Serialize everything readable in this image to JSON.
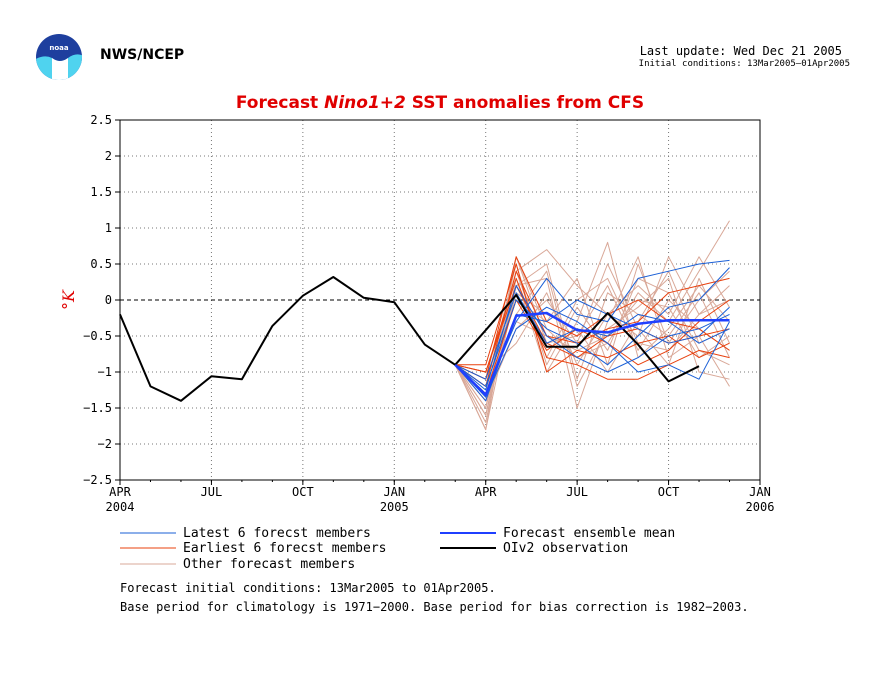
{
  "header": {
    "org": "NWS/NCEP",
    "last_update": "Last update: Wed Dec 21 2005",
    "initial_conditions": "Initial conditions: 13Mar2005–01Apr2005"
  },
  "footer": {
    "line1": "Forecast initial conditions: 13Mar2005 to 01Apr2005.",
    "line2": "Base period for climatology is 1971−2000. Base period for bias correction is 1982−2003."
  },
  "chart_data": {
    "type": "line",
    "title_parts": [
      "Forecast ",
      "Nino1+2",
      " SST anomalies from CFS"
    ],
    "title_color": "#e00000",
    "ylabel": "°K",
    "ylim": [
      -2.5,
      2.5
    ],
    "yticks": [
      "2.5",
      "2",
      "1.5",
      "1",
      "0.5",
      "0",
      "−0.5",
      "−1",
      "−1.5",
      "−2",
      "−2.5"
    ],
    "xlim": [
      0,
      21
    ],
    "xticks": [
      {
        "m": 0,
        "l1": "APR",
        "l2": "2004"
      },
      {
        "m": 3,
        "l1": "JUL",
        "l2": ""
      },
      {
        "m": 6,
        "l1": "OCT",
        "l2": ""
      },
      {
        "m": 9,
        "l1": "JAN",
        "l2": "2005"
      },
      {
        "m": 12,
        "l1": "APR",
        "l2": ""
      },
      {
        "m": 15,
        "l1": "JUL",
        "l2": ""
      },
      {
        "m": 18,
        "l1": "OCT",
        "l2": ""
      },
      {
        "m": 21,
        "l1": "JAN",
        "l2": "2006"
      }
    ],
    "grid": true,
    "legend": [
      {
        "label": "Latest 6 forecst members",
        "color": "#1a5fd6",
        "width": 1
      },
      {
        "label": "Forecast ensemble mean",
        "color": "#1f3fff",
        "width": 2
      },
      {
        "label": "Earliest 6 forecst members",
        "color": "#e8400e",
        "width": 1
      },
      {
        "label": "OIv2 observation",
        "color": "#000000",
        "width": 2
      },
      {
        "label": "Other forecast members",
        "color": "#d9a898",
        "width": 1
      }
    ],
    "observation": {
      "color": "#000000",
      "x": [
        0,
        1,
        2,
        3,
        4,
        5,
        6,
        7,
        8,
        9,
        10,
        11,
        12,
        13,
        14,
        15,
        16,
        17,
        18,
        19
      ],
      "y": [
        -0.2,
        -1.2,
        -1.4,
        -1.06,
        -1.1,
        -0.36,
        0.06,
        0.32,
        0.03,
        -0.03,
        -0.62,
        -0.9,
        -0.42,
        0.07,
        -0.65,
        -0.65,
        -0.18,
        -0.62,
        -1.13,
        -0.92
      ]
    },
    "ensemble_mean": {
      "color": "#1f3fff",
      "x": [
        11,
        12,
        13,
        14,
        15,
        16,
        17,
        18,
        19,
        20
      ],
      "y": [
        -0.9,
        -1.32,
        -0.22,
        -0.18,
        -0.42,
        -0.45,
        -0.33,
        -0.28,
        -0.28,
        -0.28
      ]
    },
    "members_x": [
      11,
      12,
      13,
      14,
      15,
      16,
      17,
      18,
      19,
      20
    ],
    "other_members": {
      "color": "#d9a898",
      "values": [
        [
          -0.9,
          -1.8,
          0.6,
          -0.4,
          -0.8,
          -0.6,
          0.1,
          -0.3,
          0.4,
          1.1
        ],
        [
          -0.9,
          -1.6,
          0.4,
          0.7,
          0.2,
          -0.2,
          -0.5,
          0.6,
          -0.2,
          0.2
        ],
        [
          -0.9,
          -1.5,
          0.2,
          0.3,
          -1.5,
          -0.3,
          0.6,
          -0.8,
          -0.5,
          -1.2
        ],
        [
          -0.9,
          -1.4,
          -0.4,
          0.0,
          -0.6,
          0.5,
          -0.4,
          -0.9,
          0.3,
          -0.6
        ],
        [
          -0.9,
          -1.2,
          0.5,
          -0.9,
          -0.1,
          -0.7,
          0.3,
          0.1,
          -0.7,
          -0.9
        ],
        [
          -0.9,
          -1.7,
          0.3,
          -1.0,
          -0.3,
          0.8,
          -0.8,
          -0.4,
          0.2,
          -0.3
        ],
        [
          -0.9,
          -1.3,
          -0.2,
          0.4,
          -1.2,
          -0.4,
          -0.1,
          0.3,
          -1.0,
          -1.1
        ],
        [
          -0.9,
          -1.1,
          0.0,
          -0.3,
          0.3,
          -0.9,
          0.5,
          -0.6,
          0.0,
          0.4
        ],
        [
          -0.9,
          -1.5,
          0.6,
          -0.6,
          -0.5,
          0.2,
          -0.7,
          0.0,
          -0.4,
          -0.7
        ],
        [
          -0.9,
          -1.0,
          -0.6,
          0.1,
          -0.9,
          -0.2,
          0.2,
          -0.2,
          0.6,
          -0.1
        ],
        [
          -0.9,
          -1.6,
          0.1,
          -0.2,
          -0.4,
          -1.0,
          -0.3,
          0.4,
          -0.6,
          -0.4
        ],
        [
          -0.9,
          -1.4,
          0.4,
          -0.8,
          0.0,
          0.3,
          -0.6,
          -0.7,
          -0.2,
          0.0
        ],
        [
          -0.9,
          -1.2,
          -0.3,
          -0.5,
          -0.7,
          -0.5,
          0.0,
          -0.1,
          -0.8,
          -0.5
        ],
        [
          -0.9,
          -1.8,
          0.2,
          0.5,
          -1.1,
          0.1,
          -0.2,
          -0.5,
          0.1,
          -0.8
        ]
      ]
    },
    "latest_members": {
      "color": "#1a5fd6",
      "values": [
        [
          -0.9,
          -1.3,
          -0.3,
          0.3,
          -0.2,
          -0.3,
          0.3,
          0.4,
          0.5,
          0.55
        ],
        [
          -0.9,
          -1.2,
          0.0,
          -0.4,
          -0.6,
          -0.9,
          -0.5,
          -0.1,
          0.0,
          0.45
        ],
        [
          -0.9,
          -1.35,
          -0.4,
          -0.1,
          -0.3,
          -0.6,
          -1.0,
          -0.9,
          -1.1,
          -0.3
        ],
        [
          -0.9,
          -1.25,
          0.2,
          -0.5,
          -0.8,
          -1.0,
          -0.8,
          -0.5,
          -0.4,
          -0.2
        ],
        [
          -0.9,
          -1.4,
          -0.2,
          -0.3,
          0.0,
          -0.2,
          -0.4,
          -0.6,
          -0.5,
          -0.1
        ],
        [
          -0.9,
          -1.1,
          0.1,
          -0.6,
          -0.4,
          -0.5,
          -0.2,
          -0.3,
          -0.6,
          -0.4
        ]
      ]
    },
    "earliest_members": {
      "color": "#e8400e",
      "values": [
        [
          -0.9,
          -1.0,
          0.3,
          -0.8,
          -0.9,
          -1.1,
          -1.1,
          -0.9,
          -0.7,
          -0.8
        ],
        [
          -0.9,
          -1.2,
          0.4,
          -0.5,
          -0.6,
          -0.4,
          -0.3,
          0.1,
          0.2,
          0.3
        ],
        [
          -0.9,
          -0.9,
          0.5,
          -1.0,
          -0.7,
          -0.8,
          -0.6,
          -0.5,
          -0.8,
          -0.6
        ],
        [
          -0.9,
          -1.1,
          0.6,
          -0.3,
          -0.5,
          -0.2,
          0.0,
          -0.3,
          -0.4,
          -0.7
        ],
        [
          -0.9,
          -1.3,
          0.0,
          -0.7,
          -0.4,
          -0.6,
          -0.9,
          -0.7,
          -0.3,
          0.0
        ],
        [
          -0.9,
          -1.0,
          0.2,
          -0.6,
          -0.8,
          -0.5,
          -0.4,
          -0.6,
          -0.5,
          -0.4
        ]
      ]
    }
  }
}
